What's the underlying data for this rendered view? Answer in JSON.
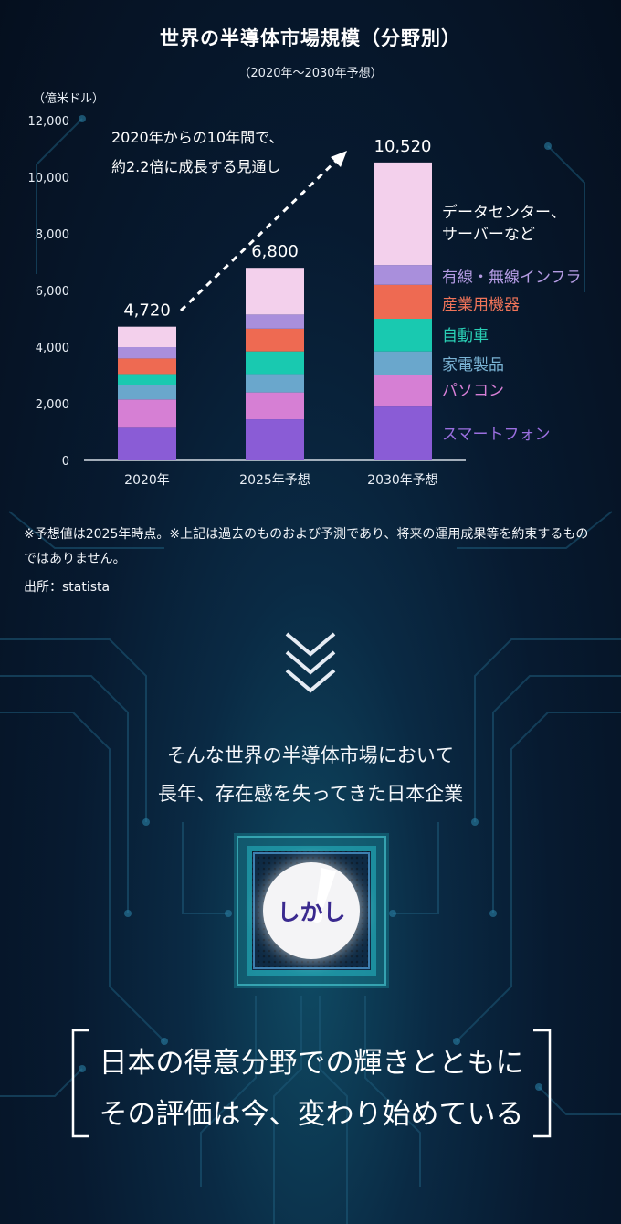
{
  "header": {
    "title": "世界の半導体市場規模（分野別）",
    "subtitle": "（2020年～2030年予想）"
  },
  "chart_data": {
    "type": "bar",
    "stacked": true,
    "ylabel": "（億米ドル）",
    "ylim": [
      0,
      12000
    ],
    "yticks": [
      0,
      2000,
      4000,
      6000,
      8000,
      10000,
      12000
    ],
    "ytick_labels": [
      "0",
      "2,000",
      "4,000",
      "6,000",
      "8,000",
      "10,000",
      "12,000"
    ],
    "categories": [
      "2020年",
      "2025年予想",
      "2030年予想"
    ],
    "totals": [
      4720,
      6800,
      10520
    ],
    "total_labels": [
      "4,720",
      "6,800",
      "10,520"
    ],
    "series": [
      {
        "name": "スマートフォン",
        "color": "#8a5cd6",
        "values": [
          1150,
          1450,
          1900
        ]
      },
      {
        "name": "パソコン",
        "color": "#d67fd4",
        "values": [
          1000,
          950,
          1100
        ]
      },
      {
        "name": "家電製品",
        "color": "#6aa7cc",
        "values": [
          500,
          650,
          850
        ]
      },
      {
        "name": "自動車",
        "color": "#19c9b0",
        "values": [
          400,
          800,
          1150
        ]
      },
      {
        "name": "産業用機器",
        "color": "#ee6a52",
        "values": [
          550,
          800,
          1200
        ]
      },
      {
        "name": "有線・無線インフラ",
        "color": "#a98fdc",
        "values": [
          400,
          500,
          700
        ]
      },
      {
        "name": "データセンター、サーバーなど",
        "color": "#f3d0ec",
        "values": [
          720,
          1650,
          3620
        ]
      }
    ],
    "legend_label_colors": [
      "#9b6fe0",
      "#d77fd6",
      "#7ab3d4",
      "#2ad0b6",
      "#f07459",
      "#b59ce4",
      "#ffffff"
    ],
    "annotation": {
      "line1": "2020年からの10年間で、",
      "line2": "約2.2倍に成長する見通し"
    }
  },
  "notes": {
    "disclaimer": "※予想値は2025年時点。※上記は過去のものおよび予測であり、将来の運用成果等を約束するものではありません。",
    "source": "出所：statista"
  },
  "lead": {
    "line1": "そんな世界の半導体市場において",
    "line2": "長年、存在感を失ってきた日本企業"
  },
  "badge": {
    "label": "しかし"
  },
  "conclusion": {
    "line1": "日本の得意分野での輝きとともに",
    "line2": "その評価は今、変わり始めている"
  },
  "icons": {
    "scroll": "triple-chevron-down-icon",
    "chip": "microchip-icon",
    "exclaim": "exclamation-icon"
  }
}
